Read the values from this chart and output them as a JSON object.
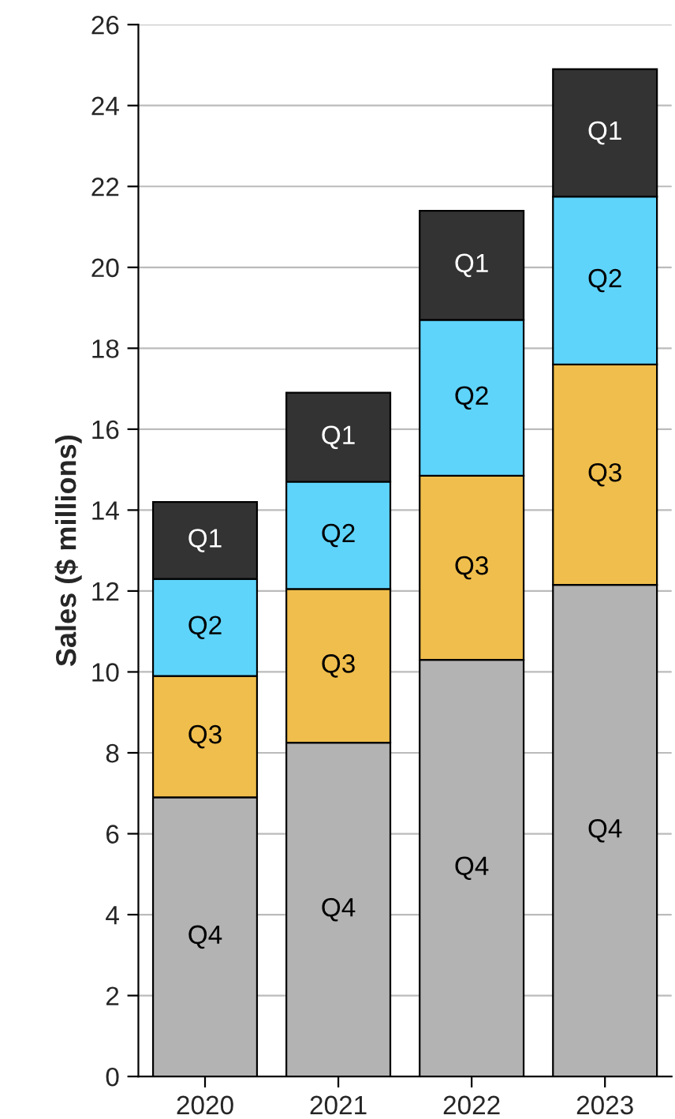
{
  "chart_data": {
    "type": "bar",
    "stacked": true,
    "ylabel": "Sales ($ millions)",
    "categories": [
      "2020",
      "2021",
      "2022",
      "2023"
    ],
    "series": [
      {
        "name": "Q4",
        "color": "#b3b3b3",
        "values": [
          6.9,
          8.25,
          10.3,
          12.15
        ]
      },
      {
        "name": "Q3",
        "color": "#f0be4c",
        "values": [
          3.0,
          3.8,
          4.55,
          5.45
        ]
      },
      {
        "name": "Q2",
        "color": "#5fd4fb",
        "values": [
          2.4,
          2.65,
          3.85,
          4.15
        ]
      },
      {
        "name": "Q1",
        "color": "#333333",
        "values": [
          1.9,
          2.2,
          2.7,
          3.15
        ]
      }
    ],
    "ylim": [
      0,
      26
    ],
    "yticks": [
      0,
      2,
      4,
      6,
      8,
      10,
      12,
      14,
      16,
      18,
      20,
      22,
      24,
      26
    ],
    "grid": "y",
    "legend": false
  }
}
